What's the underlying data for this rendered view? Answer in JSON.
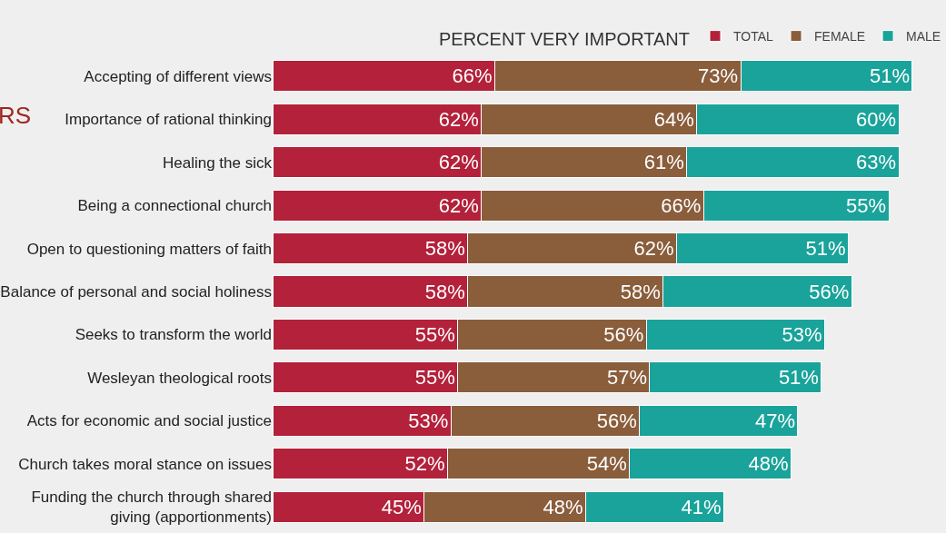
{
  "chart_data": {
    "type": "bar",
    "orientation": "horizontal",
    "stacked": true,
    "legend": "top right",
    "legend_title": "PERCENT VERY IMPORTANT",
    "tick_labels": "y",
    "grid": false,
    "annotations": [
      "RS"
    ],
    "categories": [
      "Accepting of different views",
      "Importance of rational thinking",
      "Healing the sick",
      "Being a connectional church",
      "Open to questioning matters of faith",
      "Balance of personal and social holiness",
      "Seeks to transform the world",
      "Wesleyan theological roots",
      "Acts for economic and social justice",
      "Church takes moral stance on issues",
      "Funding the church through shared\ngiving (apportionments)"
    ],
    "series": [
      {
        "name": "TOTAL",
        "color": "#b3213a",
        "values": [
          66,
          62,
          62,
          62,
          58,
          58,
          55,
          55,
          53,
          52,
          45
        ],
        "value_labels": [
          "66%",
          "62%",
          "62%",
          "62%",
          "58%",
          "58%",
          "55%",
          "55%",
          "53%",
          "52%",
          "45%"
        ]
      },
      {
        "name": "FEMALE",
        "color": "#8a5d3b",
        "values": [
          73,
          64,
          61,
          66,
          62,
          58,
          56,
          57,
          56,
          54,
          48
        ],
        "value_labels": [
          "73%",
          "64%",
          "61%",
          "66%",
          "62%",
          "58%",
          "56%",
          "57%",
          "56%",
          "54%",
          "48%"
        ]
      },
      {
        "name": "MALE",
        "color": "#19a39a",
        "values": [
          51,
          60,
          63,
          55,
          51,
          56,
          53,
          51,
          47,
          48,
          41
        ],
        "value_labels": [
          "51%",
          "60%",
          "63%",
          "55%",
          "51%",
          "56%",
          "53%",
          "51%",
          "47%",
          "48%",
          "41%"
        ]
      }
    ]
  }
}
